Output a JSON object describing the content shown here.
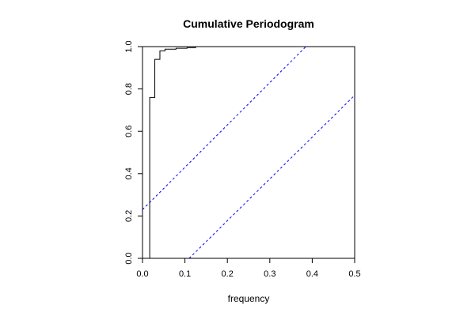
{
  "chart_data": {
    "type": "line",
    "title": "Cumulative Periodogram",
    "xlabel": "frequency",
    "ylabel": "",
    "xlim": [
      0,
      0.5
    ],
    "ylim": [
      0,
      1
    ],
    "x_ticks": [
      "0.0",
      "0.1",
      "0.2",
      "0.3",
      "0.4",
      "0.5"
    ],
    "y_ticks": [
      "0.0",
      "0.2",
      "0.4",
      "0.6",
      "0.8",
      "1.0"
    ],
    "grid": false,
    "series": [
      {
        "style": "step",
        "color": "#000000",
        "points": [
          {
            "x": 0.017,
            "y": 0.0
          },
          {
            "x": 0.017,
            "y": 0.76
          },
          {
            "x": 0.029,
            "y": 0.76
          },
          {
            "x": 0.029,
            "y": 0.94
          },
          {
            "x": 0.041,
            "y": 0.94
          },
          {
            "x": 0.041,
            "y": 0.98
          },
          {
            "x": 0.053,
            "y": 0.98
          },
          {
            "x": 0.053,
            "y": 0.988
          },
          {
            "x": 0.079,
            "y": 0.988
          },
          {
            "x": 0.079,
            "y": 0.992
          },
          {
            "x": 0.105,
            "y": 0.992
          },
          {
            "x": 0.105,
            "y": 0.995
          },
          {
            "x": 0.125,
            "y": 0.995
          },
          {
            "x": 0.125,
            "y": 1.0
          },
          {
            "x": 0.5,
            "y": 1.0
          }
        ]
      }
    ],
    "reference_lines": [
      {
        "style": "dashed",
        "color": "#0000ff",
        "points": [
          {
            "x": 0.0,
            "y": 0.23
          },
          {
            "x": 0.385,
            "y": 1.0
          }
        ]
      },
      {
        "style": "dashed",
        "color": "#0000ff",
        "points": [
          {
            "x": 0.11,
            "y": 0.0
          },
          {
            "x": 0.5,
            "y": 0.77
          }
        ]
      }
    ]
  }
}
